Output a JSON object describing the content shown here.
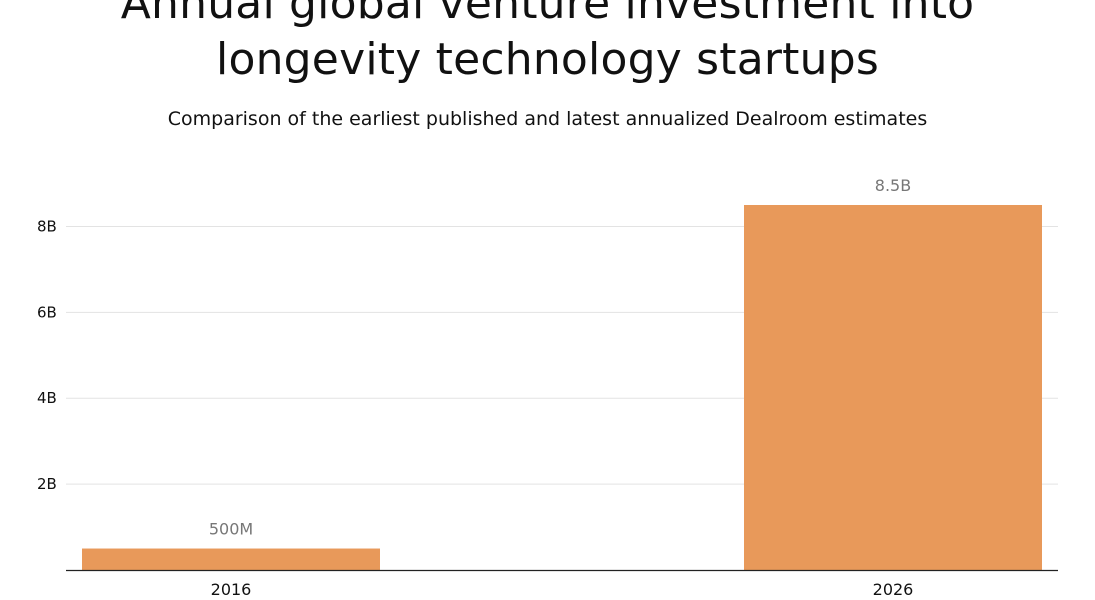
{
  "header": {
    "title_line1": "Annual global venture investment into",
    "title_line2": "longevity technology startups",
    "subtitle": "Comparison of the earliest published and latest annualized Dealroom estimates"
  },
  "chart_data": {
    "type": "bar",
    "title": "Annual global venture investment into longevity technology startups",
    "subtitle": "Comparison of the earliest published and latest annualized Dealroom estimates",
    "xlabel": "",
    "ylabel": "",
    "categories": [
      "2016",
      "2026"
    ],
    "values": [
      500000000,
      8500000000
    ],
    "data_labels": [
      "500M",
      "8.5B"
    ],
    "ylim": [
      0,
      8500000000
    ],
    "yticks": [
      2000000000,
      4000000000,
      6000000000,
      8000000000
    ],
    "ytick_labels": [
      "2B",
      "4B",
      "6B",
      "8B"
    ],
    "grid": true,
    "legend": "none",
    "bar_color": "#e8995a"
  }
}
